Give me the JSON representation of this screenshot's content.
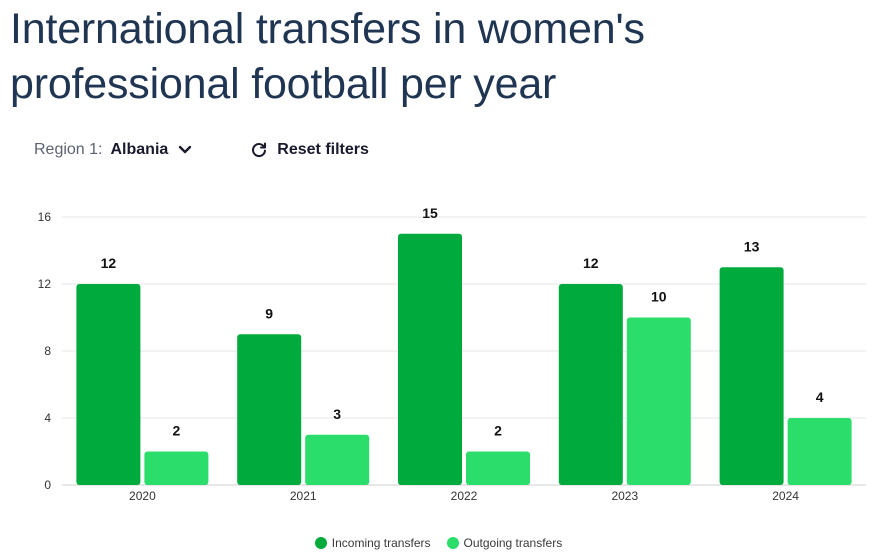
{
  "title": "International transfers in women's professional football per year",
  "filters": {
    "region_label": "Region 1:",
    "region_value": "Albania",
    "reset_label": "Reset filters"
  },
  "icons": {
    "dropdown": "chevron-down-icon",
    "reset": "refresh-icon"
  },
  "colors": {
    "incoming": "#00aa3c",
    "outgoing": "#2bdd6a",
    "grid": "#e6e6e6",
    "title": "#1f3552"
  },
  "chart_data": {
    "type": "bar",
    "categories": [
      "2020",
      "2021",
      "2022",
      "2023",
      "2024"
    ],
    "series": [
      {
        "name": "Incoming transfers",
        "values": [
          12,
          9,
          15,
          12,
          13
        ]
      },
      {
        "name": "Outgoing transfers",
        "values": [
          2,
          3,
          2,
          10,
          4
        ]
      }
    ],
    "ylim": [
      0,
      16
    ],
    "yticks": [
      0,
      4,
      8,
      12,
      16
    ],
    "grid": true,
    "legend_position": "bottom-center",
    "data_labels": true
  }
}
